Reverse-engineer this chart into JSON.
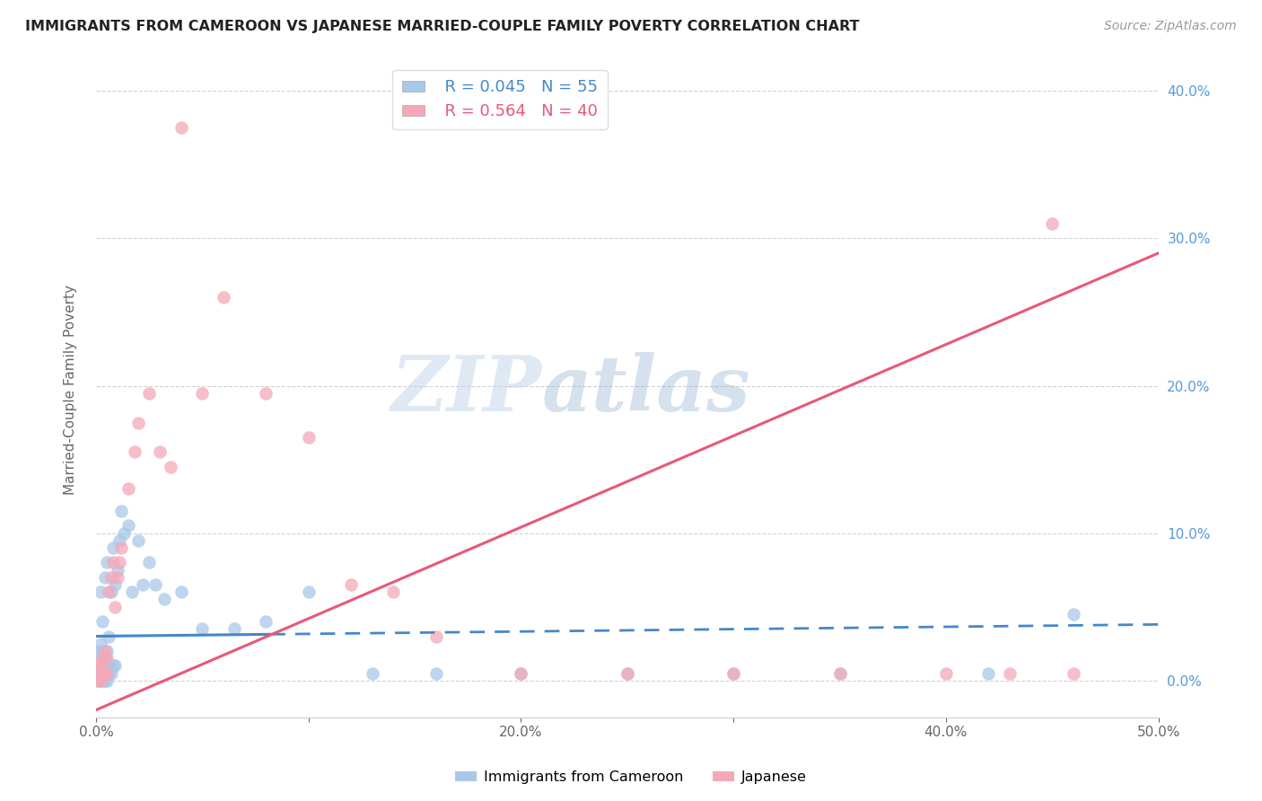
{
  "title": "IMMIGRANTS FROM CAMEROON VS JAPANESE MARRIED-COUPLE FAMILY POVERTY CORRELATION CHART",
  "source": "Source: ZipAtlas.com",
  "ylabel": "Married-Couple Family Poverty",
  "xlim": [
    0.0,
    0.5
  ],
  "ylim": [
    -0.025,
    0.42
  ],
  "xticks": [
    0.0,
    0.1,
    0.2,
    0.3,
    0.4,
    0.5
  ],
  "xticklabels": [
    "0.0%",
    "",
    "20.0%",
    "",
    "40.0%",
    "50.0%"
  ],
  "yticks_right": [
    0.0,
    0.1,
    0.2,
    0.3,
    0.4
  ],
  "yticklabels_right": [
    "0.0%",
    "10.0%",
    "20.0%",
    "30.0%",
    "40.0%"
  ],
  "legend_r1": "R = 0.045",
  "legend_n1": "N = 55",
  "legend_r2": "R = 0.564",
  "legend_n2": "N = 40",
  "color_blue": "#a8c8e8",
  "color_pink": "#f4a8b8",
  "color_blue_line": "#4488cc",
  "color_pink_line": "#e85878",
  "watermark_zip": "ZIP",
  "watermark_atlas": "atlas",
  "background_color": "#ffffff",
  "grid_color": "#cccccc",
  "blue_line_intercept": 0.03,
  "blue_line_slope": 0.016,
  "pink_line_intercept": -0.02,
  "pink_line_slope": 0.62,
  "blue_x": [
    0.001,
    0.001,
    0.001,
    0.001,
    0.002,
    0.002,
    0.002,
    0.002,
    0.002,
    0.003,
    0.003,
    0.003,
    0.003,
    0.003,
    0.004,
    0.004,
    0.004,
    0.004,
    0.005,
    0.005,
    0.005,
    0.005,
    0.006,
    0.006,
    0.006,
    0.007,
    0.007,
    0.008,
    0.008,
    0.009,
    0.009,
    0.01,
    0.011,
    0.012,
    0.013,
    0.015,
    0.017,
    0.02,
    0.022,
    0.025,
    0.028,
    0.032,
    0.04,
    0.05,
    0.065,
    0.08,
    0.1,
    0.13,
    0.16,
    0.2,
    0.25,
    0.3,
    0.35,
    0.42,
    0.46
  ],
  "blue_y": [
    0.0,
    0.005,
    0.01,
    0.02,
    0.0,
    0.005,
    0.015,
    0.025,
    0.06,
    0.0,
    0.005,
    0.01,
    0.02,
    0.04,
    0.0,
    0.005,
    0.015,
    0.07,
    0.0,
    0.005,
    0.02,
    0.08,
    0.005,
    0.01,
    0.03,
    0.005,
    0.06,
    0.01,
    0.09,
    0.01,
    0.065,
    0.075,
    0.095,
    0.115,
    0.1,
    0.105,
    0.06,
    0.095,
    0.065,
    0.08,
    0.065,
    0.055,
    0.06,
    0.035,
    0.035,
    0.04,
    0.06,
    0.005,
    0.005,
    0.005,
    0.005,
    0.005,
    0.005,
    0.005,
    0.045
  ],
  "pink_x": [
    0.001,
    0.001,
    0.001,
    0.002,
    0.002,
    0.003,
    0.003,
    0.004,
    0.004,
    0.005,
    0.005,
    0.006,
    0.007,
    0.008,
    0.009,
    0.01,
    0.011,
    0.012,
    0.015,
    0.018,
    0.02,
    0.025,
    0.03,
    0.035,
    0.04,
    0.05,
    0.06,
    0.08,
    0.1,
    0.12,
    0.14,
    0.16,
    0.2,
    0.25,
    0.3,
    0.35,
    0.4,
    0.43,
    0.45,
    0.46
  ],
  "pink_y": [
    0.0,
    0.005,
    0.01,
    0.0,
    0.01,
    0.005,
    0.015,
    0.005,
    0.02,
    0.005,
    0.015,
    0.06,
    0.07,
    0.08,
    0.05,
    0.07,
    0.08,
    0.09,
    0.13,
    0.155,
    0.175,
    0.195,
    0.155,
    0.145,
    0.375,
    0.195,
    0.26,
    0.195,
    0.165,
    0.065,
    0.06,
    0.03,
    0.005,
    0.005,
    0.005,
    0.005,
    0.005,
    0.005,
    0.31,
    0.005
  ]
}
